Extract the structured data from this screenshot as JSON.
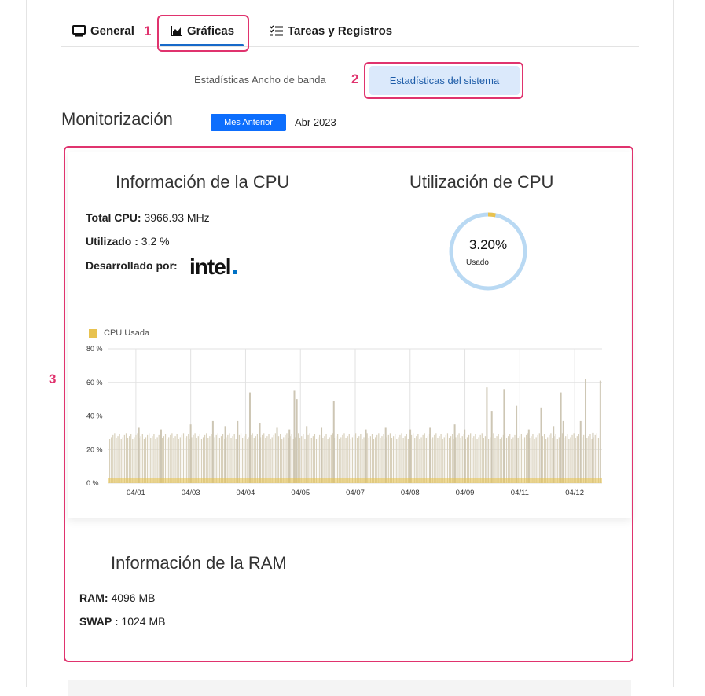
{
  "tabs": [
    {
      "label": "General",
      "icon": "monitor-icon",
      "active": false
    },
    {
      "label": "Gráficas",
      "icon": "area-chart-icon",
      "active": true
    },
    {
      "label": "Tareas y Registros",
      "icon": "checklist-icon",
      "active": false
    }
  ],
  "annotations": [
    "1",
    "2",
    "3"
  ],
  "subtabs": {
    "bandwidth": "Estadísticas Ancho de banda",
    "system": "Estadísticas del sistema"
  },
  "monitor": {
    "title": "Monitorización",
    "prev_button": "Mes Anterior",
    "month": "Abr 2023"
  },
  "cpu": {
    "title": "Información de la CPU",
    "total_label": "Total CPU:",
    "total_value": "3966.93 MHz",
    "used_label": "Utilizado :",
    "used_value": "3.2 %",
    "dev_label": "Desarrollado por:",
    "dev_logo_text": "intel"
  },
  "util": {
    "title": "Utilización de CPU",
    "value": "3.20%",
    "label": "Usado",
    "fraction": 0.032
  },
  "ram": {
    "title": "Información de la RAM",
    "ram_label": "RAM:",
    "ram_value": "4096 MB",
    "swap_label": "SWAP :",
    "swap_value": "1024 MB"
  },
  "colors": {
    "accent": "#0d6efd",
    "annotation": "#e0336e",
    "series_fill": "#e8c24f",
    "donut_track": "#b9d9f3"
  },
  "chart_data": {
    "type": "bar",
    "legend": [
      "CPU Usada"
    ],
    "ylim": [
      0,
      80
    ],
    "yticks": [
      "0 %",
      "20 %",
      "40 %",
      "60 %",
      "80 %"
    ],
    "xticks": [
      "04/01",
      "04/03",
      "04/04",
      "04/05",
      "04/07",
      "04/08",
      "04/09",
      "04/11",
      "04/12"
    ],
    "series": [
      {
        "name": "CPU Usada",
        "baseline": 28,
        "spikes": [
          {
            "pos": 0.06,
            "value": 33
          },
          {
            "pos": 0.105,
            "value": 32
          },
          {
            "pos": 0.165,
            "value": 35
          },
          {
            "pos": 0.21,
            "value": 37
          },
          {
            "pos": 0.235,
            "value": 34
          },
          {
            "pos": 0.26,
            "value": 37
          },
          {
            "pos": 0.285,
            "value": 54
          },
          {
            "pos": 0.305,
            "value": 36
          },
          {
            "pos": 0.34,
            "value": 33
          },
          {
            "pos": 0.365,
            "value": 32
          },
          {
            "pos": 0.375,
            "value": 55
          },
          {
            "pos": 0.38,
            "value": 50
          },
          {
            "pos": 0.4,
            "value": 34
          },
          {
            "pos": 0.43,
            "value": 33
          },
          {
            "pos": 0.455,
            "value": 49
          },
          {
            "pos": 0.52,
            "value": 32
          },
          {
            "pos": 0.56,
            "value": 33
          },
          {
            "pos": 0.61,
            "value": 32
          },
          {
            "pos": 0.65,
            "value": 33
          },
          {
            "pos": 0.7,
            "value": 35
          },
          {
            "pos": 0.72,
            "value": 32
          },
          {
            "pos": 0.765,
            "value": 57
          },
          {
            "pos": 0.775,
            "value": 43
          },
          {
            "pos": 0.8,
            "value": 56
          },
          {
            "pos": 0.825,
            "value": 46
          },
          {
            "pos": 0.85,
            "value": 32
          },
          {
            "pos": 0.875,
            "value": 45
          },
          {
            "pos": 0.9,
            "value": 34
          },
          {
            "pos": 0.915,
            "value": 54
          },
          {
            "pos": 0.92,
            "value": 37
          },
          {
            "pos": 0.955,
            "value": 37
          },
          {
            "pos": 0.965,
            "value": 62
          },
          {
            "pos": 0.98,
            "value": 30
          },
          {
            "pos": 0.995,
            "value": 61
          }
        ]
      }
    ],
    "grid": true
  }
}
